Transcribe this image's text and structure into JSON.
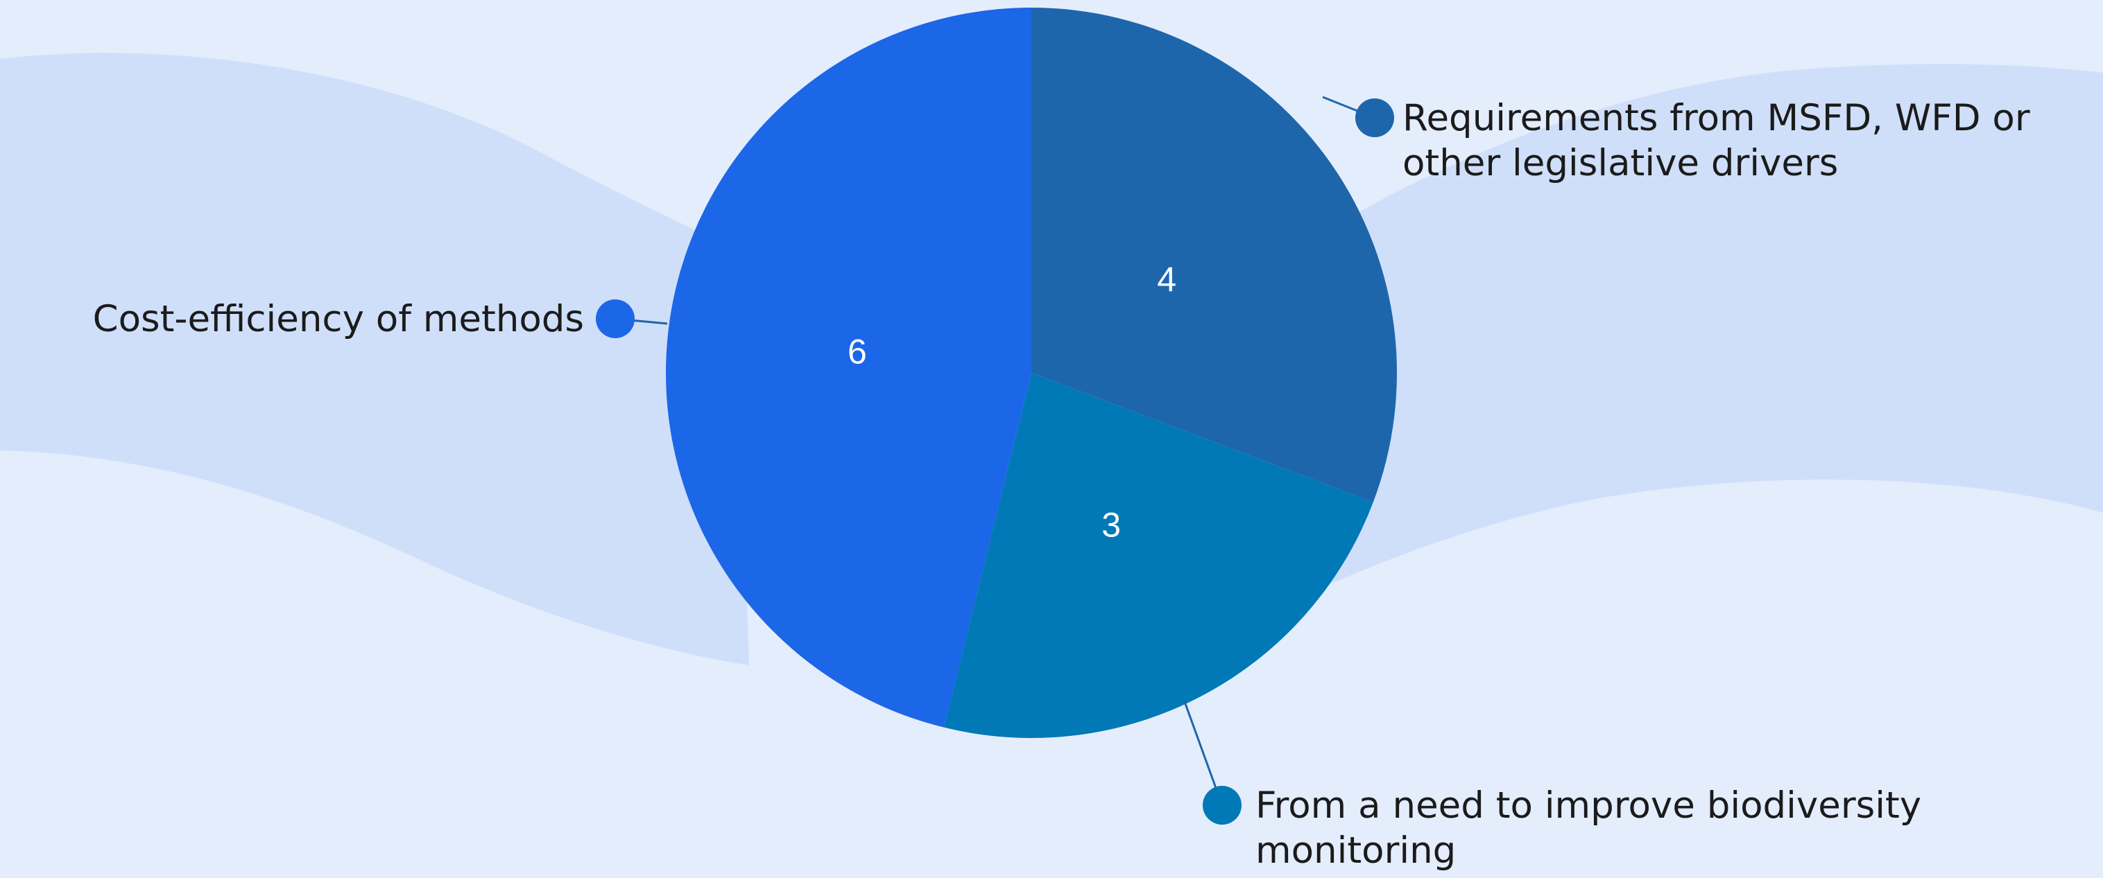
{
  "chart_data": {
    "type": "pie",
    "title": "",
    "slices": [
      {
        "label_lines": [
          "Requirements from MSFD, WFD or",
          "other legislative drivers"
        ],
        "value": 4,
        "color": "#1e66ab"
      },
      {
        "label_lines": [
          "From a need to improve biodiversity",
          "monitoring"
        ],
        "value": 3,
        "color": "#0079b6"
      },
      {
        "label_lines": [
          "Cost-efficiency of methods"
        ],
        "value": 6,
        "color": "#1c66e8"
      }
    ]
  },
  "colors": {
    "background": "#e4edfc",
    "wave": "#cfdff9",
    "leader_line": "#1e66ab"
  }
}
